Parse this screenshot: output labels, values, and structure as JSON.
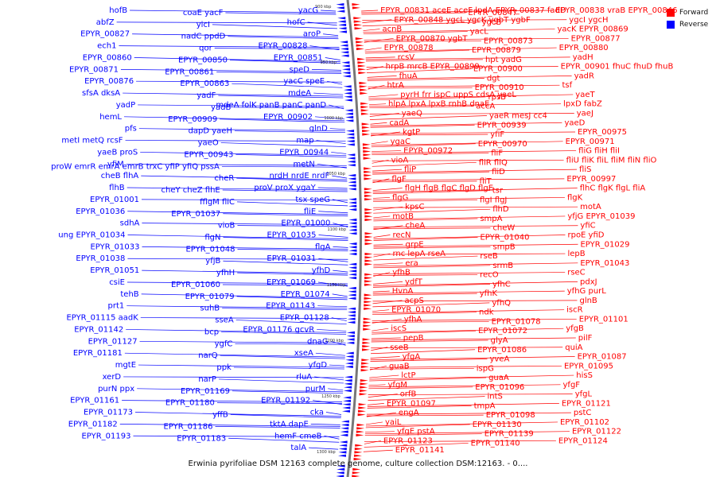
{
  "caption": "Erwinia pyrifoliae DSM 12163 complete genome, culture collection DSM:12163. - 0....",
  "legend": [
    {
      "label": "Forward",
      "color": "#ff0000"
    },
    {
      "label": "Reverse",
      "color": "#0000ff"
    }
  ],
  "colors": {
    "forward": "#ff0000",
    "reverse": "#0000ff",
    "backbone": "#777777"
  },
  "ticks": [
    "900 kbp",
    "950 kbp",
    "1000 kbp",
    "1050 kbp",
    "1100 kbp",
    "1150 kbp",
    "1200 kbp",
    "1250 kbp",
    "1300 kbp"
  ],
  "reverse_labels": [
    {
      "text": "yacG"
    },
    {
      "text": "coaE yacF"
    },
    {
      "text": "hofB"
    },
    {
      "text": "hofC"
    },
    {
      "text": "yicI"
    },
    {
      "text": "abfZ"
    },
    {
      "text": "aroP"
    },
    {
      "text": "nadC ppdD"
    },
    {
      "text": "EPYR_00827"
    },
    {
      "text": "EPYR_00828"
    },
    {
      "text": "qor"
    },
    {
      "text": "ech1"
    },
    {
      "text": "EPYR_00851"
    },
    {
      "text": "EPYR_00850"
    },
    {
      "text": "EPYR_00860"
    },
    {
      "text": "speD"
    },
    {
      "text": "EPYR_00861"
    },
    {
      "text": "EPYR_00871"
    },
    {
      "text": "yacC speE"
    },
    {
      "text": "EPYR_00863"
    },
    {
      "text": "EPYR_00876"
    },
    {
      "text": "mdeA"
    },
    {
      "text": "yadF"
    },
    {
      "text": "sfsA dksA"
    },
    {
      "text": "mdeA folK panB panC panD"
    },
    {
      "text": "yadB"
    },
    {
      "text": "yadP"
    },
    {
      "text": "EPYR_00902"
    },
    {
      "text": "EPYR_00909"
    },
    {
      "text": "hemL"
    },
    {
      "text": "glnD"
    },
    {
      "text": "dapD yaeH"
    },
    {
      "text": "pfs"
    },
    {
      "text": "map"
    },
    {
      "text": "yaeO"
    },
    {
      "text": "metI metQ rcsF"
    },
    {
      "text": "EPYR_00944"
    },
    {
      "text": "EPYR_00943"
    },
    {
      "text": "yaeB proS"
    },
    {
      "text": "metN"
    },
    {
      "text": "proW emrR emrA emrB trxC yfiP yfiQ pssA"
    },
    {
      "text": "yfiM"
    },
    {
      "text": "nrdH nrdE nrdF"
    },
    {
      "text": "cheR"
    },
    {
      "text": "cheB flhA"
    },
    {
      "text": "proV proX ygaY"
    },
    {
      "text": "cheY cheZ flhE"
    },
    {
      "text": "flhB"
    },
    {
      "text": "tsx speG"
    },
    {
      "text": "fflgM fliC"
    },
    {
      "text": "EPYR_01001"
    },
    {
      "text": "fliE"
    },
    {
      "text": "EPYR_01037"
    },
    {
      "text": "EPYR_01036"
    },
    {
      "text": "EPYR_01000"
    },
    {
      "text": "vioB"
    },
    {
      "text": "sdhA"
    },
    {
      "text": "EPYR_01035"
    },
    {
      "text": "flgN"
    },
    {
      "text": "ung EPYR_01034"
    },
    {
      "text": "flgA"
    },
    {
      "text": "EPYR_01048"
    },
    {
      "text": "EPYR_01033"
    },
    {
      "text": "EPYR_01031"
    },
    {
      "text": "yfjB"
    },
    {
      "text": "EPYR_01038"
    },
    {
      "text": "yfhD"
    },
    {
      "text": "yfhH"
    },
    {
      "text": "EPYR_01051"
    },
    {
      "text": "EPYR_01069"
    },
    {
      "text": "EPYR_01060"
    },
    {
      "text": "csiE"
    },
    {
      "text": "EPYR_01074"
    },
    {
      "text": "EPYR_01079"
    },
    {
      "text": "tehB"
    },
    {
      "text": "EPYR_01143"
    },
    {
      "text": "suhB"
    },
    {
      "text": "prt1"
    },
    {
      "text": "EPYR_01128"
    },
    {
      "text": "sseA"
    },
    {
      "text": "EPYR_01115 aadK"
    },
    {
      "text": "EPYR_01176 gcvR"
    },
    {
      "text": "bcp"
    },
    {
      "text": "EPYR_01142"
    },
    {
      "text": "dnaG"
    },
    {
      "text": "ygfC"
    },
    {
      "text": "EPYR_01127"
    },
    {
      "text": "xseA"
    },
    {
      "text": "narQ"
    },
    {
      "text": "EPYR_01181"
    },
    {
      "text": "yfgD"
    },
    {
      "text": "ppk"
    },
    {
      "text": "mgtE"
    },
    {
      "text": "rluA"
    },
    {
      "text": "narP"
    },
    {
      "text": "xerD"
    },
    {
      "text": "purM"
    },
    {
      "text": "EPYR_01169"
    },
    {
      "text": "purN ppx"
    },
    {
      "text": "EPYR_01192"
    },
    {
      "text": "EPYR_01180"
    },
    {
      "text": "EPYR_01161"
    },
    {
      "text": "cka"
    },
    {
      "text": "yffB"
    },
    {
      "text": "EPYR_01173"
    },
    {
      "text": "tktA dapE"
    },
    {
      "text": "EPYR_01186"
    },
    {
      "text": "EPYR_01182"
    },
    {
      "text": "hemF cmeB"
    },
    {
      "text": "EPYR_01183"
    },
    {
      "text": "EPYR_01193"
    },
    {
      "text": "talA"
    }
  ],
  "forward_labels": [
    {
      "text": "EPYR_00831 aceE aceF lpdA EPYR_00837 fadD"
    },
    {
      "text": "EPYR_00847"
    },
    {
      "text": "EPYR_00838 vraB EPYR_00846"
    },
    {
      "text": "EPYR_00848 ygcL ygcK ygbT ygbF"
    },
    {
      "text": "ygcB"
    },
    {
      "text": "ygcI ygcH"
    },
    {
      "text": "acnB"
    },
    {
      "text": "yacL"
    },
    {
      "text": "yacK EPYR_00869"
    },
    {
      "text": "EPYR_00870 ygbT"
    },
    {
      "text": "EPYR_00873"
    },
    {
      "text": "EPYR_00877"
    },
    {
      "text": "EPYR_00878"
    },
    {
      "text": "EPYR_00879"
    },
    {
      "text": "EPYR_00880"
    },
    {
      "text": "rcsV"
    },
    {
      "text": "hpt yadG"
    },
    {
      "text": "yadH"
    },
    {
      "text": "hrpB mrcB EPYR_00899"
    },
    {
      "text": "EPYR_00900"
    },
    {
      "text": "EPYR_00901 fhuC fhuD fhuB"
    },
    {
      "text": "fhuA"
    },
    {
      "text": "dgt"
    },
    {
      "text": "yadR"
    },
    {
      "text": "htrA"
    },
    {
      "text": "EPYR_00910"
    },
    {
      "text": "tsf"
    },
    {
      "text": "pyrH frr ispC uppS cdsA yaeL"
    },
    {
      "text": "rpsB"
    },
    {
      "text": "yaeT"
    },
    {
      "text": "hlpA lpxA lpxB rnhB dnaE"
    },
    {
      "text": "accA"
    },
    {
      "text": "lpxD fabZ"
    },
    {
      "text": "yaeQ"
    },
    {
      "text": "yaeR mesJ cc4"
    },
    {
      "text": "yaeJ"
    },
    {
      "text": "cadA"
    },
    {
      "text": "EPYR_00939"
    },
    {
      "text": "yaeD"
    },
    {
      "text": "kgtP"
    },
    {
      "text": "yfiF"
    },
    {
      "text": "EPYR_00975"
    },
    {
      "text": "ygaC"
    },
    {
      "text": "EPYR_00970"
    },
    {
      "text": "EPYR_00971"
    },
    {
      "text": "EPYR_00972"
    },
    {
      "text": "fliF"
    },
    {
      "text": "fliG fliH fliI"
    },
    {
      "text": "vioA"
    },
    {
      "text": "fliR fliQ"
    },
    {
      "text": "fliU fliK fliL fliM fliN fliO"
    },
    {
      "text": "fliP"
    },
    {
      "text": "fliD"
    },
    {
      "text": "fliS"
    },
    {
      "text": "flgF"
    },
    {
      "text": "fliT"
    },
    {
      "text": "EPYR_00997"
    },
    {
      "text": "flgH flgB flgC flgD flgE"
    },
    {
      "text": "tsr"
    },
    {
      "text": "flhC flgK flgL fliA"
    },
    {
      "text": "flgG"
    },
    {
      "text": "flgI flgJ"
    },
    {
      "text": "flgK"
    },
    {
      "text": "kpsC"
    },
    {
      "text": "flhD"
    },
    {
      "text": "motA"
    },
    {
      "text": "motB"
    },
    {
      "text": "smpA"
    },
    {
      "text": "yfjG EPYR_01039"
    },
    {
      "text": "cheA"
    },
    {
      "text": "cheW"
    },
    {
      "text": "yfiC"
    },
    {
      "text": "recN"
    },
    {
      "text": "EPYR_01040"
    },
    {
      "text": "rpoE yfiD"
    },
    {
      "text": "grpE"
    },
    {
      "text": "smpB"
    },
    {
      "text": "EPYR_01029"
    },
    {
      "text": "rnc lepA rseA"
    },
    {
      "text": "rseB"
    },
    {
      "text": "lepB"
    },
    {
      "text": "era"
    },
    {
      "text": "srmB"
    },
    {
      "text": "EPYR_01043"
    },
    {
      "text": "yfhB"
    },
    {
      "text": "recO"
    },
    {
      "text": "rseC"
    },
    {
      "text": "ydfT"
    },
    {
      "text": "yfhC"
    },
    {
      "text": "pdxJ"
    },
    {
      "text": "HvnA"
    },
    {
      "text": "yfhK"
    },
    {
      "text": "yfhG purL"
    },
    {
      "text": "acpS"
    },
    {
      "text": "yfhQ"
    },
    {
      "text": "glnB"
    },
    {
      "text": "EPYR_01070"
    },
    {
      "text": "ndk"
    },
    {
      "text": "iscR"
    },
    {
      "text": "yfhA"
    },
    {
      "text": "EPYR_01078"
    },
    {
      "text": "EPYR_01101"
    },
    {
      "text": "iscS"
    },
    {
      "text": "EPYR_01072"
    },
    {
      "text": "yfgB"
    },
    {
      "text": "pepB"
    },
    {
      "text": "glyA"
    },
    {
      "text": "pilF"
    },
    {
      "text": "sseB"
    },
    {
      "text": "EPYR_01086"
    },
    {
      "text": "quiA"
    },
    {
      "text": "yfgA"
    },
    {
      "text": "yveA"
    },
    {
      "text": "EPYR_01087"
    },
    {
      "text": "guaB"
    },
    {
      "text": "ispG"
    },
    {
      "text": "EPYR_01095"
    },
    {
      "text": "lctP"
    },
    {
      "text": "guaA"
    },
    {
      "text": "hisS"
    },
    {
      "text": "yfgM"
    },
    {
      "text": "EPYR_01096"
    },
    {
      "text": "yfgF"
    },
    {
      "text": "orfB"
    },
    {
      "text": "intS"
    },
    {
      "text": "yfgL"
    },
    {
      "text": "EPYR_01097"
    },
    {
      "text": "tmpA"
    },
    {
      "text": "EPYR_01121"
    },
    {
      "text": "engA"
    },
    {
      "text": "EPYR_01098"
    },
    {
      "text": "pstC"
    },
    {
      "text": "yaiL"
    },
    {
      "text": "EPYR_01130"
    },
    {
      "text": "EPYR_01102"
    },
    {
      "text": "yfgE pstA"
    },
    {
      "text": "EPYR_01139"
    },
    {
      "text": "EPYR_01122"
    },
    {
      "text": "EPYR_01123"
    },
    {
      "text": "EPYR_01140"
    },
    {
      "text": "EPYR_01124"
    },
    {
      "text": "EPYR_01141"
    }
  ]
}
